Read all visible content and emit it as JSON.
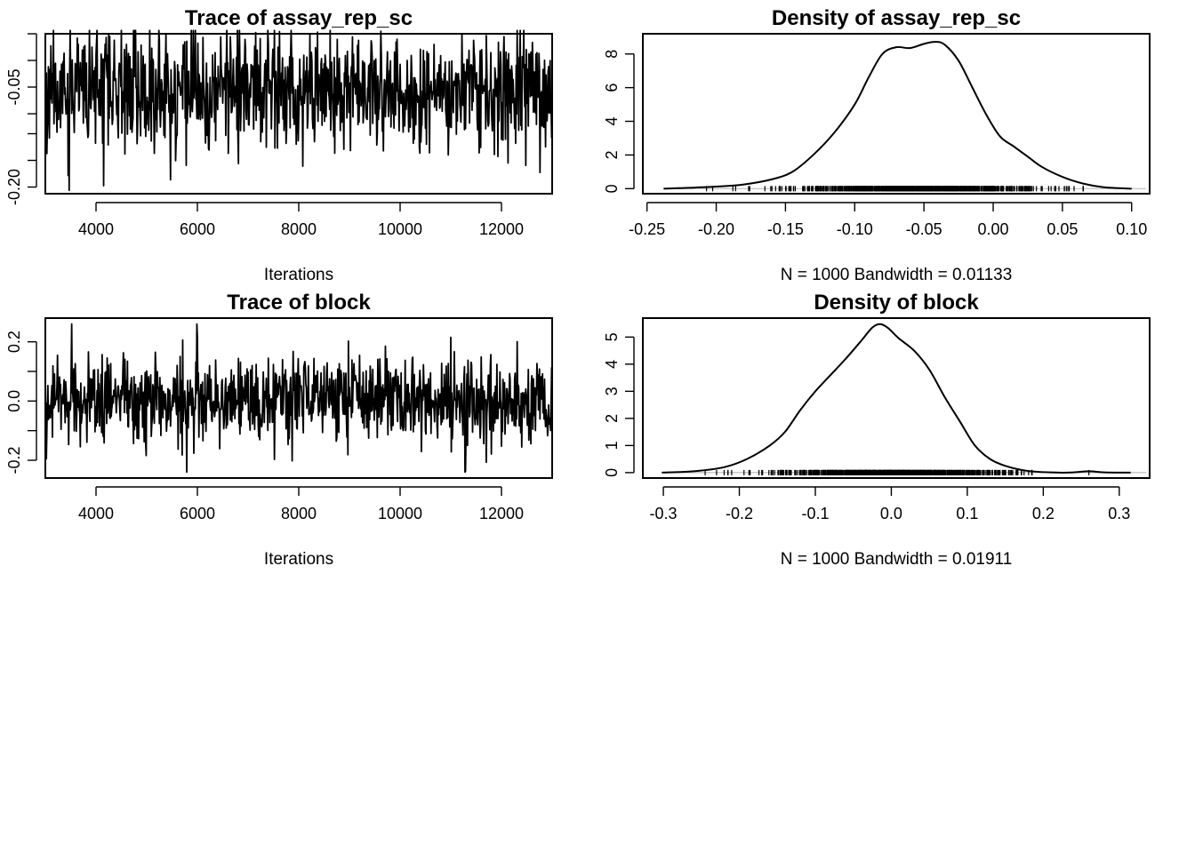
{
  "colors": {
    "line": "#000000",
    "background": "#ffffff",
    "zero_line": "#bebebe",
    "frame": "#000000"
  },
  "chart_data": [
    {
      "type": "line",
      "title": "Trace of assay_rep_sc",
      "xlabel": "Iterations",
      "ylabel": "",
      "xlim": [
        3000,
        13000
      ],
      "ylim": [
        -0.21,
        0.03
      ],
      "x_ticks": [
        4000,
        6000,
        8000,
        10000,
        12000
      ],
      "x_tick_labels": [
        "4000",
        "6000",
        "8000",
        "10000",
        "12000"
      ],
      "y_ticks": [
        -0.2,
        -0.05
      ],
      "y_tick_labels": [
        "-0.20",
        "-0.05"
      ],
      "y_minor_ticks": [
        -0.2,
        -0.16,
        -0.12,
        -0.09,
        -0.05,
        -0.01,
        0.03
      ],
      "grid": false,
      "trace": {
        "n": 1000,
        "start": 3010,
        "thin": 10,
        "center": -0.055,
        "spread": 0.043,
        "clip": [
          -0.205,
          0.035
        ],
        "seed": 11
      }
    },
    {
      "type": "area",
      "title": "Density of assay_rep_sc",
      "xlabel": "N = 1000   Bandwidth = 0.01133",
      "ylabel": "",
      "xlim": [
        -0.253,
        0.113
      ],
      "ylim": [
        -0.3,
        9.2
      ],
      "x_ticks": [
        -0.25,
        -0.2,
        -0.15,
        -0.1,
        -0.05,
        0.0,
        0.05,
        0.1
      ],
      "x_tick_labels": [
        "-0.25",
        "-0.20",
        "-0.15",
        "-0.10",
        "-0.05",
        "0.00",
        "0.05",
        "0.10"
      ],
      "y_ticks": [
        0,
        2,
        4,
        6,
        8
      ],
      "y_tick_labels": [
        "0",
        "2",
        "4",
        "6",
        "8"
      ],
      "grid": false,
      "density_points": [
        [
          -0.238,
          0.0
        ],
        [
          -0.22,
          0.05
        ],
        [
          -0.2,
          0.12
        ],
        [
          -0.18,
          0.25
        ],
        [
          -0.16,
          0.55
        ],
        [
          -0.145,
          1.0
        ],
        [
          -0.13,
          2.0
        ],
        [
          -0.115,
          3.3
        ],
        [
          -0.1,
          5.0
        ],
        [
          -0.09,
          6.6
        ],
        [
          -0.08,
          8.0
        ],
        [
          -0.07,
          8.4
        ],
        [
          -0.06,
          8.35
        ],
        [
          -0.05,
          8.6
        ],
        [
          -0.042,
          8.72
        ],
        [
          -0.035,
          8.55
        ],
        [
          -0.025,
          7.6
        ],
        [
          -0.015,
          6.0
        ],
        [
          -0.005,
          4.4
        ],
        [
          0.005,
          3.1
        ],
        [
          0.015,
          2.5
        ],
        [
          0.025,
          1.9
        ],
        [
          0.035,
          1.3
        ],
        [
          0.05,
          0.7
        ],
        [
          0.065,
          0.3
        ],
        [
          0.08,
          0.08
        ],
        [
          0.1,
          0.0
        ]
      ],
      "rug": {
        "n": 1000,
        "center": -0.055,
        "spread": 0.043,
        "range": [
          -0.205,
          0.065
        ],
        "outliers": [
          -0.207,
          -0.188,
          -0.186,
          0.065
        ],
        "seed": 21
      }
    },
    {
      "type": "line",
      "title": "Trace of block",
      "xlabel": "Iterations",
      "ylabel": "",
      "xlim": [
        3000,
        13000
      ],
      "ylim": [
        -0.26,
        0.28
      ],
      "x_ticks": [
        4000,
        6000,
        8000,
        10000,
        12000
      ],
      "x_tick_labels": [
        "4000",
        "6000",
        "8000",
        "10000",
        "12000"
      ],
      "y_ticks": [
        -0.2,
        0.0,
        0.2
      ],
      "y_tick_labels": [
        "-0.2",
        "0.0",
        "0.2"
      ],
      "y_minor_ticks": [
        -0.2,
        -0.1,
        0.0,
        0.1,
        0.2
      ],
      "grid": false,
      "trace": {
        "n": 1000,
        "start": 3010,
        "thin": 10,
        "center": 0.0,
        "spread": 0.072,
        "clip": [
          -0.24,
          0.26
        ],
        "seed": 33
      }
    },
    {
      "type": "area",
      "title": "Density of block",
      "xlabel": "N = 1000   Bandwidth = 0.01911",
      "ylabel": "",
      "xlim": [
        -0.327,
        0.34
      ],
      "ylim": [
        -0.2,
        5.7
      ],
      "x_ticks": [
        -0.3,
        -0.2,
        -0.1,
        0.0,
        0.1,
        0.2,
        0.3
      ],
      "x_tick_labels": [
        "-0.3",
        "-0.2",
        "-0.1",
        "0.0",
        "0.1",
        "0.2",
        "0.3"
      ],
      "y_ticks": [
        0,
        1,
        2,
        3,
        4,
        5
      ],
      "y_tick_labels": [
        "0",
        "1",
        "2",
        "3",
        "4",
        "5"
      ],
      "grid": false,
      "density_points": [
        [
          -0.302,
          0.0
        ],
        [
          -0.26,
          0.05
        ],
        [
          -0.22,
          0.2
        ],
        [
          -0.19,
          0.5
        ],
        [
          -0.16,
          1.0
        ],
        [
          -0.14,
          1.5
        ],
        [
          -0.12,
          2.3
        ],
        [
          -0.1,
          3.0
        ],
        [
          -0.08,
          3.6
        ],
        [
          -0.06,
          4.2
        ],
        [
          -0.04,
          4.85
        ],
        [
          -0.025,
          5.35
        ],
        [
          -0.015,
          5.48
        ],
        [
          -0.005,
          5.35
        ],
        [
          0.01,
          4.95
        ],
        [
          0.03,
          4.5
        ],
        [
          0.05,
          3.8
        ],
        [
          0.07,
          2.8
        ],
        [
          0.09,
          1.9
        ],
        [
          0.11,
          1.0
        ],
        [
          0.13,
          0.5
        ],
        [
          0.15,
          0.25
        ],
        [
          0.18,
          0.06
        ],
        [
          0.22,
          0.0
        ],
        [
          0.24,
          0.01
        ],
        [
          0.26,
          0.05
        ],
        [
          0.28,
          0.01
        ],
        [
          0.315,
          0.0
        ]
      ],
      "rug": {
        "n": 1000,
        "center": -0.005,
        "spread": 0.072,
        "range": [
          -0.215,
          0.185
        ],
        "outliers": [
          -0.245,
          -0.23,
          -0.22,
          0.26
        ],
        "seed": 44
      }
    }
  ]
}
